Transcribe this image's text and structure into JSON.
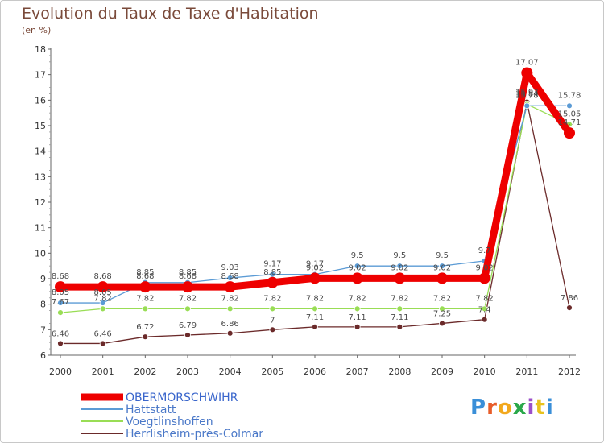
{
  "chart_data": {
    "type": "line",
    "title": "Evolution du Taux de Taxe d'Habitation",
    "subtitle": "(en %)",
    "x": [
      "2000",
      "2001",
      "2002",
      "2003",
      "2004",
      "2005",
      "2006",
      "2007",
      "2008",
      "2009",
      "2010",
      "2011",
      "2012"
    ],
    "ylim": [
      6,
      18
    ],
    "yticks": [
      "6",
      "7",
      "8",
      "9",
      "10",
      "11",
      "12",
      "13",
      "14",
      "15",
      "16",
      "17",
      "18"
    ],
    "grid": false,
    "legend_position": "bottom-left",
    "series": [
      {
        "name": "OBERMORSCHWIHR",
        "color": "#ee0000",
        "values": [
          8.68,
          8.68,
          8.68,
          8.68,
          8.68,
          8.85,
          9.02,
          9.02,
          9.02,
          9.02,
          9.02,
          17.07,
          14.71
        ],
        "labels": [
          "8.68",
          "8.68",
          "8.68",
          "8.68",
          "8.68",
          "8.85",
          "9.02",
          "9.02",
          "9.02",
          "9.02",
          "9.02",
          "17.07",
          "14.71"
        ]
      },
      {
        "name": "Hattstatt",
        "color": "#5b9bd5",
        "values": [
          8.05,
          8.05,
          8.85,
          8.85,
          9.03,
          9.17,
          9.17,
          9.5,
          9.5,
          9.5,
          9.7,
          15.78,
          15.78
        ],
        "labels": [
          "8.05",
          "8.05",
          "8.85",
          "8.85",
          "9.03",
          "9.17",
          "9.17",
          "9.5",
          "9.5",
          "9.5",
          "9.7",
          "15.78",
          "15.78"
        ]
      },
      {
        "name": "Voegtlinshoffen",
        "color": "#99dd55",
        "values": [
          7.67,
          7.82,
          7.82,
          7.82,
          7.82,
          7.82,
          7.82,
          7.82,
          7.82,
          7.82,
          7.82,
          15.84,
          15.05
        ],
        "labels": [
          "7.67",
          "7.82",
          "7.82",
          "7.82",
          "7.82",
          "7.82",
          "7.82",
          "7.82",
          "7.82",
          "7.82",
          "7.82",
          "15.84",
          "15.05"
        ]
      },
      {
        "name": "Herrlisheim-près-Colmar",
        "color": "#6b2a2a",
        "values": [
          6.46,
          6.46,
          6.72,
          6.79,
          6.86,
          7,
          7.11,
          7.11,
          7.11,
          7.25,
          7.4,
          15.93,
          7.86
        ],
        "labels": [
          "6.46",
          "6.46",
          "6.72",
          "6.79",
          "6.86",
          "7",
          "7.11",
          "7.11",
          "7.11",
          "7.25",
          "7.4",
          "15.93",
          "7.86"
        ]
      }
    ]
  },
  "logo": {
    "letters": [
      "P",
      "r",
      "o",
      "x",
      "i",
      "t",
      "i"
    ],
    "colors": [
      "#3a8fd8",
      "#e85d2a",
      "#f2a81d",
      "#2aa84a",
      "#9b4fc9",
      "#e8c21d",
      "#3a8fd8"
    ]
  }
}
